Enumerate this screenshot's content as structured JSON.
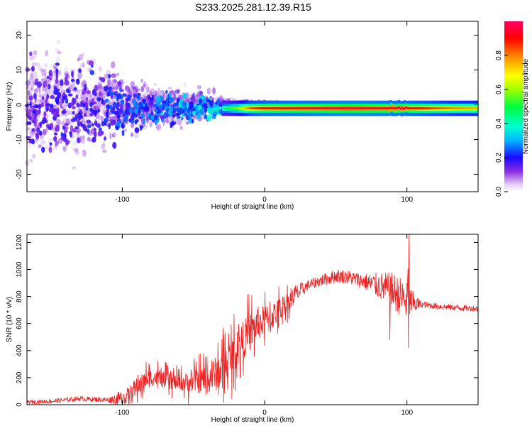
{
  "title": "S233.2025.281.12.39.R15",
  "chart_data": [
    {
      "type": "heatmap",
      "name": "spectrogram",
      "title": "S233.2025.281.12.39.R15",
      "xlabel": "Height of straight line (km)",
      "ylabel": "Frequency (Hz)",
      "xlim": [
        -167,
        150
      ],
      "ylim": [
        -25,
        24
      ],
      "xticks": [
        -100,
        0,
        100
      ],
      "yticks": [
        -20,
        -10,
        0,
        10,
        20
      ],
      "colorbar": {
        "label": "Normalized spectral amplitude",
        "range": [
          0,
          1
        ],
        "ticks": [
          0.0,
          0.2,
          0.4,
          0.6,
          0.8
        ]
      },
      "center_line": {
        "frequency_hz": -1,
        "start_km": -30,
        "end_km": 150,
        "amplitude_profile": [
          {
            "x": -30,
            "a": 0.45
          },
          {
            "x": -20,
            "a": 0.6
          },
          {
            "x": -10,
            "a": 0.85
          },
          {
            "x": 0,
            "a": 0.92
          },
          {
            "x": 20,
            "a": 0.95
          },
          {
            "x": 60,
            "a": 1.0
          },
          {
            "x": 95,
            "a": 0.95
          },
          {
            "x": 110,
            "a": 0.9
          },
          {
            "x": 130,
            "a": 0.8
          },
          {
            "x": 150,
            "a": 0.75
          }
        ]
      },
      "scatter_envelope": [
        {
          "x": -167,
          "spread_hz": 24,
          "amp": 0.15
        },
        {
          "x": -120,
          "spread_hz": 20,
          "amp": 0.18
        },
        {
          "x": -100,
          "spread_hz": 12,
          "amp": 0.22
        },
        {
          "x": -60,
          "spread_hz": 7,
          "amp": 0.26
        },
        {
          "x": -40,
          "spread_hz": 5,
          "amp": 0.3
        },
        {
          "x": -25,
          "spread_hz": 2,
          "amp": 0.3
        },
        {
          "x": 0,
          "spread_hz": 1,
          "amp": 0.3
        }
      ]
    },
    {
      "type": "line",
      "name": "snr",
      "xlabel": "Height of straight line (km)",
      "ylabel": "SNR (10 * v/v)",
      "xlim": [
        -167,
        150
      ],
      "ylim": [
        0,
        1260
      ],
      "xticks": [
        -100,
        0,
        100
      ],
      "yticks": [
        0,
        200,
        400,
        600,
        800,
        1000,
        1200
      ],
      "color": "#ee2222",
      "series": [
        {
          "name": "SNR",
          "x": [
            -167,
            -150,
            -140,
            -130,
            -120,
            -110,
            -100,
            -95,
            -90,
            -85,
            -80,
            -75,
            -70,
            -60,
            -50,
            -40,
            -30,
            -20,
            -15,
            -10,
            -5,
            0,
            5,
            10,
            15,
            20,
            25,
            30,
            40,
            50,
            55,
            60,
            70,
            80,
            90,
            95,
            98,
            100,
            101,
            102,
            105,
            110,
            120,
            130,
            140,
            150
          ],
          "y": [
            20,
            25,
            35,
            45,
            40,
            35,
            50,
            80,
            130,
            170,
            200,
            200,
            180,
            160,
            170,
            190,
            260,
            400,
            480,
            540,
            600,
            620,
            650,
            700,
            750,
            800,
            840,
            880,
            920,
            950,
            950,
            940,
            910,
            880,
            840,
            800,
            780,
            760,
            1000,
            760,
            750,
            740,
            730,
            720,
            715,
            710
          ]
        }
      ],
      "noise_amplitude": [
        {
          "x": -167,
          "a": 15
        },
        {
          "x": -110,
          "a": 20
        },
        {
          "x": -90,
          "a": 100
        },
        {
          "x": -60,
          "a": 80
        },
        {
          "x": -30,
          "a": 200
        },
        {
          "x": -10,
          "a": 200
        },
        {
          "x": 10,
          "a": 130
        },
        {
          "x": 30,
          "a": 40
        },
        {
          "x": 70,
          "a": 60
        },
        {
          "x": 90,
          "a": 140
        },
        {
          "x": 100,
          "a": 150
        },
        {
          "x": 110,
          "a": 25
        },
        {
          "x": 150,
          "a": 22
        }
      ],
      "spikes": [
        {
          "x": 101.5,
          "y": 1260
        },
        {
          "x": 101,
          "y": 420
        },
        {
          "x": 88,
          "y": 480
        }
      ]
    }
  ]
}
